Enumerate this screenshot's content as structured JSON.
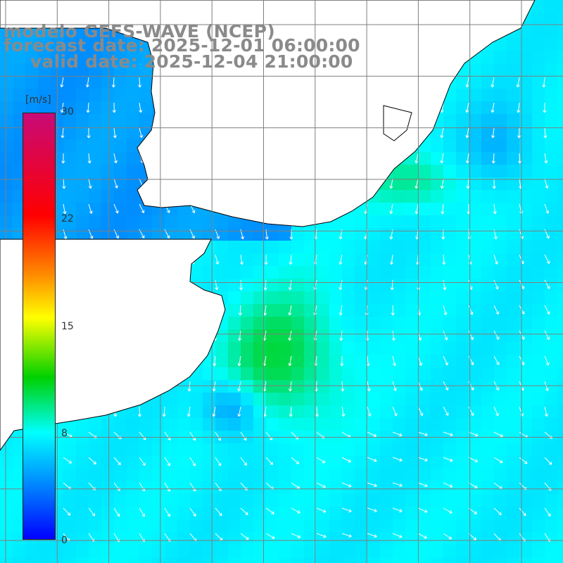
{
  "title": {
    "line1": "modelo GEFS-WAVE (NCEP)",
    "line2": "forecast date: 2025-12-01 06:00:00",
    "line3": "valid date: 2025-12-04 21:00:00"
  },
  "colorbar": {
    "units": "[m/s]",
    "min": 0,
    "max": 30,
    "ticks": [
      "30",
      "22",
      "15",
      "8",
      "0"
    ],
    "colors": [
      "#c80a78",
      "#ff0000",
      "#ff8c00",
      "#ffff00",
      "#00d000",
      "#00ffff",
      "#007fff",
      "#0000ff"
    ]
  },
  "map": {
    "region": "Rio de la Plata / South Atlantic",
    "variable": "wind speed and direction",
    "land_color": "#ffffff",
    "grid_color": "#7f7f7f",
    "coast_color": "#000000"
  }
}
